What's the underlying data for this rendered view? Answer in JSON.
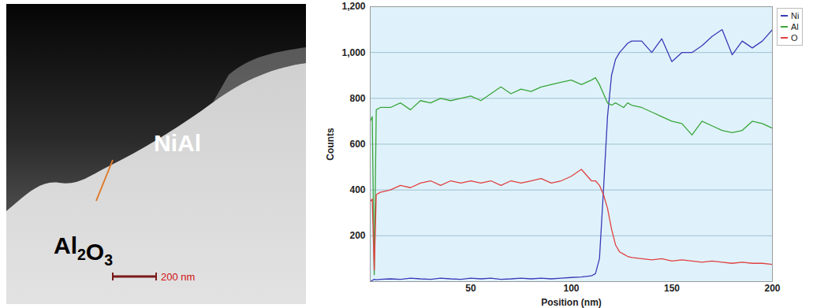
{
  "chart_data": {
    "type": "line",
    "xlabel": "Position (nm)",
    "ylabel": "Counts",
    "x": [
      0,
      1,
      2,
      3,
      5,
      10,
      15,
      20,
      25,
      30,
      35,
      40,
      45,
      50,
      55,
      60,
      65,
      70,
      75,
      80,
      85,
      90,
      95,
      100,
      105,
      110,
      112,
      114,
      116,
      118,
      120,
      122,
      124,
      126,
      128,
      130,
      135,
      140,
      145,
      150,
      155,
      160,
      165,
      170,
      175,
      180,
      185,
      190,
      195,
      200
    ],
    "series": [
      {
        "name": "Ni",
        "color": "#3a3ab8",
        "values": [
          0,
          5,
          10,
          8,
          10,
          12,
          10,
          15,
          12,
          10,
          15,
          12,
          10,
          15,
          12,
          15,
          10,
          12,
          15,
          12,
          15,
          12,
          15,
          18,
          20,
          25,
          35,
          100,
          400,
          720,
          900,
          970,
          1000,
          1020,
          1040,
          1050,
          1050,
          1000,
          1060,
          960,
          1000,
          1000,
          1030,
          1070,
          1100,
          990,
          1050,
          1020,
          1050,
          1100
        ]
      },
      {
        "name": "Al",
        "color": "#3aa53a",
        "values": [
          700,
          720,
          30,
          750,
          760,
          760,
          780,
          750,
          790,
          780,
          800,
          790,
          800,
          810,
          790,
          820,
          850,
          820,
          840,
          830,
          850,
          860,
          870,
          880,
          860,
          880,
          890,
          860,
          820,
          780,
          770,
          780,
          770,
          760,
          780,
          770,
          760,
          740,
          720,
          700,
          690,
          640,
          700,
          680,
          660,
          650,
          660,
          700,
          690,
          670
        ]
      },
      {
        "name": "O",
        "color": "#e04040",
        "values": [
          350,
          360,
          50,
          380,
          390,
          400,
          420,
          410,
          430,
          440,
          420,
          440,
          430,
          440,
          430,
          440,
          420,
          440,
          430,
          440,
          450,
          430,
          440,
          460,
          490,
          440,
          440,
          420,
          380,
          320,
          230,
          160,
          130,
          120,
          110,
          105,
          100,
          95,
          100,
          90,
          95,
          90,
          85,
          90,
          85,
          80,
          85,
          80,
          80,
          75
        ]
      }
    ],
    "xlim": [
      0,
      200
    ],
    "ylim": [
      0,
      1200
    ],
    "xticks": [
      50,
      100,
      150,
      200
    ],
    "yticks": [
      200,
      400,
      600,
      800,
      1000,
      1200
    ],
    "grid": true,
    "legend": "right"
  },
  "micrograph": {
    "labels": [
      "NiAl",
      "Al2O3"
    ],
    "scale_bar": "200 nm"
  }
}
